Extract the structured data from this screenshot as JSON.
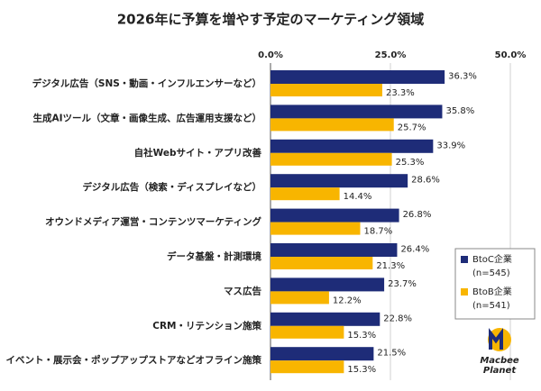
{
  "chart_data": {
    "type": "bar",
    "orientation": "horizontal",
    "title": "2026年に予算を増やす予定のマーケティング領域",
    "categories": [
      "デジタル広告（SNS・動画・インフルエンサーなど）",
      "生成AIツール（文章・画像生成、広告運用支援など）",
      "自社Webサイト・アプリ改善",
      "デジタル広告（検索・ディスプレイなど）",
      "オウンドメディア運営・コンテンツマーケティング",
      "データ基盤・計測環境",
      "マス広告",
      "CRM・リテンション施策",
      "イベント・展示会・ポップアップストアなどオフライン施策"
    ],
    "series": [
      {
        "name": "BtoC企業",
        "legend_note": "(n=545)",
        "color": "#1e2c78",
        "values": [
          36.3,
          35.8,
          33.9,
          28.6,
          26.8,
          26.4,
          23.7,
          22.8,
          21.5
        ],
        "value_labels": [
          "36.3%",
          "35.8%",
          "33.9%",
          "28.6%",
          "26.8%",
          "26.4%",
          "23.7%",
          "22.8%",
          "21.5%"
        ]
      },
      {
        "name": "BtoB企業",
        "legend_note": "(n=541)",
        "color": "#f8b500",
        "values": [
          23.3,
          25.7,
          25.3,
          14.4,
          18.7,
          21.3,
          12.2,
          15.3,
          15.3
        ],
        "value_labels": [
          "23.3%",
          "25.7%",
          "25.3%",
          "14.4%",
          "18.7%",
          "21.3%",
          "12.2%",
          "15.3%",
          "15.3%"
        ]
      }
    ],
    "xlim": [
      0,
      50
    ],
    "xticks": [
      {
        "value": 0,
        "label": "0.0%"
      },
      {
        "value": 25,
        "label": "25.0%"
      },
      {
        "value": 50,
        "label": "50.0%"
      }
    ],
    "grid": true,
    "legend_position": "right",
    "logo": [
      "Macbee",
      "Planet"
    ]
  }
}
